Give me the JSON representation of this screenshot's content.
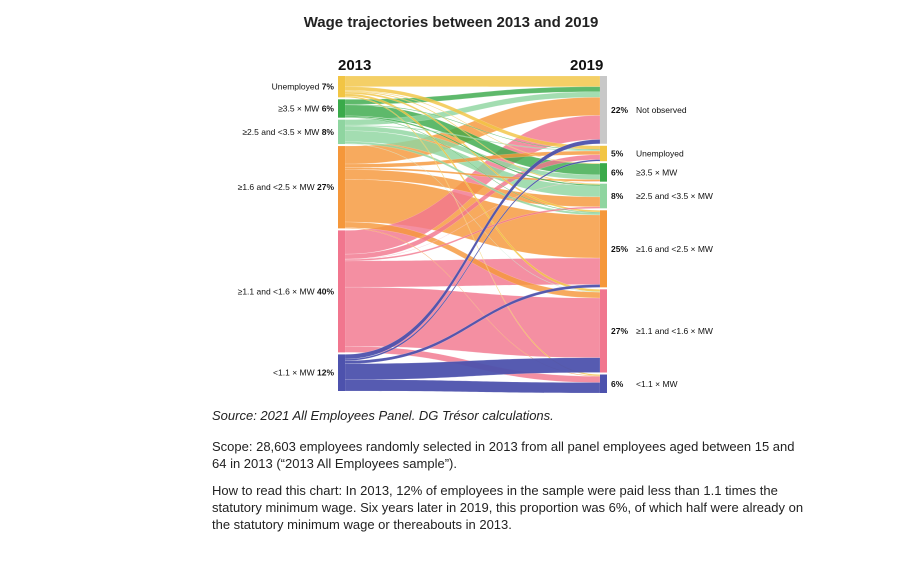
{
  "title": "Wage trajectories between 2013 and 2019",
  "chart_data": {
    "type": "sankey",
    "title": "Wage trajectories between 2013 and 2019",
    "left_year": "2013",
    "right_year": "2019",
    "left_nodes": [
      {
        "id": "U",
        "label": "Unemployed",
        "value": 7,
        "pct": "7%",
        "color": "#f2c544"
      },
      {
        "id": "A",
        "label": "≥3.5 × MW",
        "value": 6,
        "pct": "6%",
        "color": "#3aaa4a"
      },
      {
        "id": "B",
        "label": "≥2.5 and <3.5 × MW",
        "value": 8,
        "pct": "8%",
        "color": "#8fd5a0"
      },
      {
        "id": "C",
        "label": "≥1.6 and <2.5 × MW",
        "value": 27,
        "pct": "27%",
        "color": "#f5973a"
      },
      {
        "id": "D",
        "label": "≥1.1 and <1.6 × MW",
        "value": 40,
        "pct": "40%",
        "color": "#f1768e"
      },
      {
        "id": "E",
        "label": "<1.1 × MW",
        "value": 12,
        "pct": "12%",
        "color": "#4d52ad"
      }
    ],
    "right_nodes": [
      {
        "id": "NO",
        "label": "Not observed",
        "value": 22,
        "pct": "22%",
        "color": "#c8c8c8"
      },
      {
        "id": "U",
        "label": "Unemployed",
        "value": 5,
        "pct": "5%",
        "color": "#f2c544"
      },
      {
        "id": "A",
        "label": "≥3.5 × MW",
        "value": 6,
        "pct": "6%",
        "color": "#3aaa4a"
      },
      {
        "id": "B",
        "label": "≥2.5 and <3.5 × MW",
        "value": 8,
        "pct": "8%",
        "color": "#8fd5a0"
      },
      {
        "id": "C",
        "label": "≥1.6 and <2.5 × MW",
        "value": 25,
        "pct": "25%",
        "color": "#f5973a"
      },
      {
        "id": "D",
        "label": "≥1.1 and <1.6 × MW",
        "value": 27,
        "pct": "27%",
        "color": "#f1768e"
      },
      {
        "id": "E",
        "label": "<1.1 × MW",
        "value": 6,
        "pct": "6%",
        "color": "#4d52ad"
      }
    ],
    "flows": [
      {
        "from": "U",
        "to": "NO",
        "value": 3.5
      },
      {
        "from": "U",
        "to": "U",
        "value": 1.2
      },
      {
        "from": "U",
        "to": "A",
        "value": 0.2
      },
      {
        "from": "U",
        "to": "B",
        "value": 0.3
      },
      {
        "from": "U",
        "to": "C",
        "value": 0.6
      },
      {
        "from": "U",
        "to": "D",
        "value": 0.8
      },
      {
        "from": "U",
        "to": "E",
        "value": 0.4
      },
      {
        "from": "A",
        "to": "NO",
        "value": 1.6
      },
      {
        "from": "A",
        "to": "U",
        "value": 0.2
      },
      {
        "from": "A",
        "to": "A",
        "value": 3.6
      },
      {
        "from": "A",
        "to": "B",
        "value": 0.4
      },
      {
        "from": "A",
        "to": "C",
        "value": 0.2
      },
      {
        "from": "B",
        "to": "NO",
        "value": 1.8
      },
      {
        "from": "B",
        "to": "U",
        "value": 0.3
      },
      {
        "from": "B",
        "to": "A",
        "value": 1.5
      },
      {
        "from": "B",
        "to": "B",
        "value": 3.6
      },
      {
        "from": "B",
        "to": "C",
        "value": 0.7
      },
      {
        "from": "B",
        "to": "D",
        "value": 0.1
      },
      {
        "from": "C",
        "to": "NO",
        "value": 5.9
      },
      {
        "from": "C",
        "to": "U",
        "value": 1.2
      },
      {
        "from": "C",
        "to": "A",
        "value": 0.6
      },
      {
        "from": "C",
        "to": "B",
        "value": 3.2
      },
      {
        "from": "C",
        "to": "C",
        "value": 14.0
      },
      {
        "from": "C",
        "to": "D",
        "value": 1.9
      },
      {
        "from": "C",
        "to": "E",
        "value": 0.2
      },
      {
        "from": "D",
        "to": "NO",
        "value": 7.8
      },
      {
        "from": "D",
        "to": "U",
        "value": 1.6
      },
      {
        "from": "D",
        "to": "A",
        "value": 0.1
      },
      {
        "from": "D",
        "to": "B",
        "value": 0.5
      },
      {
        "from": "D",
        "to": "C",
        "value": 8.6
      },
      {
        "from": "D",
        "to": "D",
        "value": 19.4
      },
      {
        "from": "D",
        "to": "E",
        "value": 2.0
      },
      {
        "from": "E",
        "to": "NO",
        "value": 1.4
      },
      {
        "from": "E",
        "to": "U",
        "value": 0.5
      },
      {
        "from": "E",
        "to": "C",
        "value": 0.9
      },
      {
        "from": "E",
        "to": "D",
        "value": 4.8
      },
      {
        "from": "E",
        "to": "E",
        "value": 3.4
      }
    ]
  },
  "notes": {
    "source": "Source: 2021 All Employees Panel. DG Trésor calculations.",
    "scope": "Scope: 28,603 employees randomly selected in 2013 from all panel employees aged between 15 and 64 in 2013 (“2013 All Employees sample”).",
    "howto": "How to read this chart: In 2013, 12% of employees in the sample were paid less than 1.1 times the statutory minimum wage. Six years later in 2019, this proportion was 6%, of which half were already on the statutory minimum wage or thereabouts in 2013."
  }
}
